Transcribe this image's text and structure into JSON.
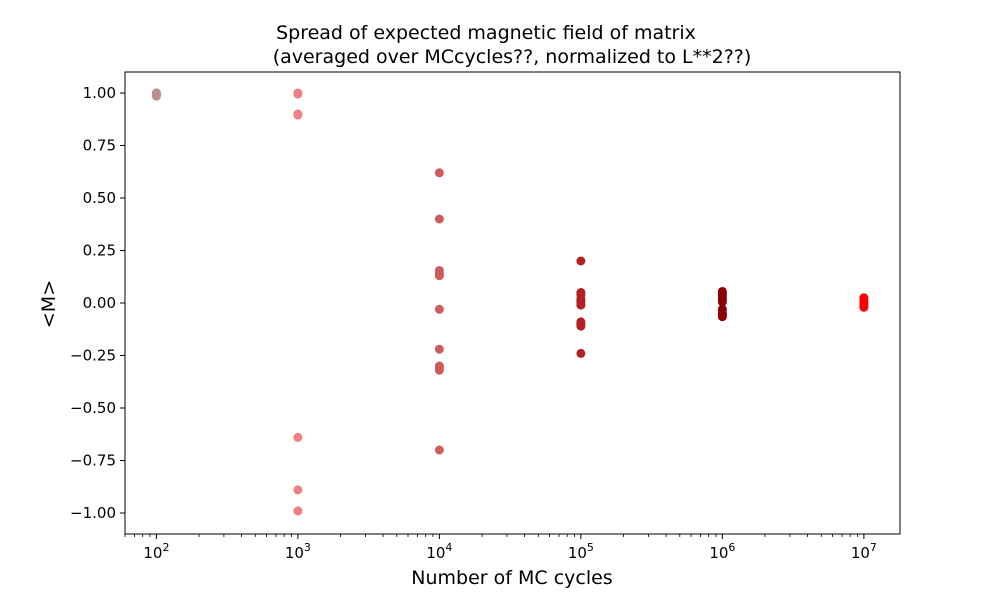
{
  "chart_data": {
    "type": "scatter",
    "title_line1": "Spread of expected magnetic field of matrix",
    "title_line2": "(averaged over MCcycles??, normalized to L**2??)",
    "xlabel": "Number of MC cycles",
    "ylabel": "<M>",
    "x_scale": "log",
    "xlim": [
      60,
      18000000
    ],
    "ylim": [
      -1.1,
      1.1
    ],
    "grid": false,
    "x_ticks": [
      {
        "value": 100,
        "base": "10",
        "exp": "2"
      },
      {
        "value": 1000,
        "base": "10",
        "exp": "3"
      },
      {
        "value": 10000,
        "base": "10",
        "exp": "4"
      },
      {
        "value": 100000,
        "base": "10",
        "exp": "5"
      },
      {
        "value": 1000000,
        "base": "10",
        "exp": "6"
      },
      {
        "value": 10000000,
        "base": "10",
        "exp": "7"
      }
    ],
    "y_ticks": [
      {
        "value": 1.0,
        "label": "1.00"
      },
      {
        "value": 0.75,
        "label": "0.75"
      },
      {
        "value": 0.5,
        "label": "0.50"
      },
      {
        "value": 0.25,
        "label": "0.25"
      },
      {
        "value": 0.0,
        "label": "0.00"
      },
      {
        "value": -0.25,
        "label": "−0.25"
      },
      {
        "value": -0.5,
        "label": "−0.50"
      },
      {
        "value": -0.75,
        "label": "−0.75"
      },
      {
        "value": -1.0,
        "label": "−1.00"
      }
    ],
    "series": [
      {
        "color": "#bc8f8f",
        "points": [
          [
            100,
            1.0
          ],
          [
            100,
            0.995
          ],
          [
            100,
            0.99
          ],
          [
            100,
            1.0
          ],
          [
            100,
            0.985
          ]
        ]
      },
      {
        "color": "#f08080",
        "points": [
          [
            1000,
            1.0
          ],
          [
            1000,
            0.995
          ],
          [
            1000,
            0.9
          ],
          [
            1000,
            0.895
          ],
          [
            1000,
            -0.64
          ],
          [
            1000,
            -0.89
          ],
          [
            1000,
            -0.99
          ]
        ]
      },
      {
        "color": "#cd5c5c",
        "points": [
          [
            10000,
            0.62
          ],
          [
            10000,
            0.4
          ],
          [
            10000,
            0.155
          ],
          [
            10000,
            0.14
          ],
          [
            10000,
            0.13
          ],
          [
            10000,
            -0.03
          ],
          [
            10000,
            -0.22
          ],
          [
            10000,
            -0.3
          ],
          [
            10000,
            -0.31
          ],
          [
            10000,
            -0.32
          ],
          [
            10000,
            -0.7
          ]
        ]
      },
      {
        "color": "#b22222",
        "points": [
          [
            100000,
            0.2
          ],
          [
            100000,
            0.05
          ],
          [
            100000,
            0.04
          ],
          [
            100000,
            0.02
          ],
          [
            100000,
            0.01
          ],
          [
            100000,
            0.0
          ],
          [
            100000,
            -0.01
          ],
          [
            100000,
            -0.09
          ],
          [
            100000,
            -0.1
          ],
          [
            100000,
            -0.11
          ],
          [
            100000,
            -0.24
          ]
        ]
      },
      {
        "color": "#8b0000",
        "points": [
          [
            1000000,
            0.055
          ],
          [
            1000000,
            0.045
          ],
          [
            1000000,
            0.035
          ],
          [
            1000000,
            0.025
          ],
          [
            1000000,
            0.015
          ],
          [
            1000000,
            0.005
          ],
          [
            1000000,
            -0.03
          ],
          [
            1000000,
            -0.045
          ],
          [
            1000000,
            -0.055
          ],
          [
            1000000,
            -0.065
          ]
        ]
      },
      {
        "color": "#ff0000",
        "points": [
          [
            10000000,
            0.025
          ],
          [
            10000000,
            0.018
          ],
          [
            10000000,
            0.01
          ],
          [
            10000000,
            0.003
          ],
          [
            10000000,
            -0.005
          ],
          [
            10000000,
            -0.012
          ],
          [
            10000000,
            -0.02
          ]
        ]
      }
    ]
  }
}
